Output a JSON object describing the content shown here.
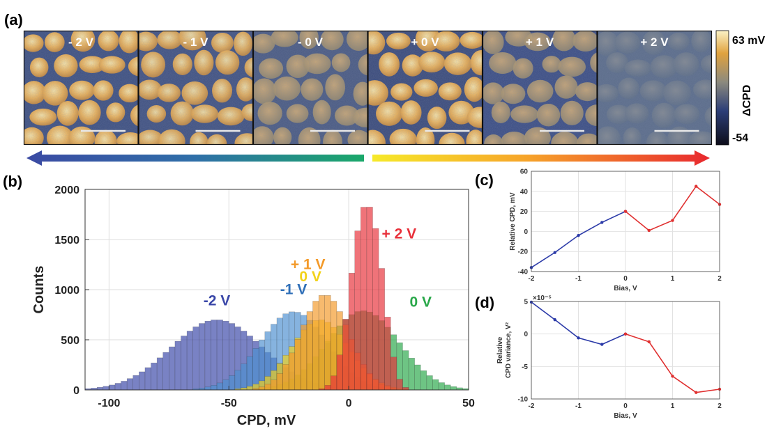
{
  "panel_labels": {
    "a": "(a)",
    "b": "(b)",
    "c": "(c)",
    "d": "(d)"
  },
  "images": {
    "labels": [
      "- 2 V",
      "- 1 V",
      "- 0 V",
      "+ 0 V",
      "+ 1 V",
      "+ 2 V"
    ],
    "colorbar": {
      "max_label": "63 mV",
      "min_label": "-54",
      "title": "ΔCPD"
    }
  },
  "chart_data": [
    {
      "id": "b",
      "type": "bar",
      "xlabel": "CPD, mV",
      "ylabel": "Counts",
      "xlim": [
        -110,
        50
      ],
      "ylim": [
        0,
        2000
      ],
      "xticks": [
        -100,
        -50,
        0,
        50
      ],
      "yticks": [
        0,
        500,
        1000,
        1500,
        2000
      ],
      "grid": true,
      "bin_width": 2.5,
      "series": [
        {
          "name": "-2 V",
          "color": "#3a47a8",
          "peaks": [
            {
              "center": -55,
              "height": 700,
              "width": 19
            }
          ]
        },
        {
          "name": "-1 V",
          "color": "#4d8fd0",
          "peaks": [
            {
              "center": -23,
              "height": 780,
              "width": 14
            }
          ]
        },
        {
          "name": "0 V",
          "color": "#2aa84a",
          "peaks": [
            {
              "center": 6,
              "height": 790,
              "width": 15
            }
          ]
        },
        {
          "name": "0 V",
          "color": "#f2d21a",
          "peaks": [
            {
              "center": -12,
              "height": 700,
              "width": 12
            }
          ]
        },
        {
          "name": "+ 1 V",
          "color": "#f39a2a",
          "peaks": [
            {
              "center": -10,
              "height": 950,
              "width": 10
            }
          ]
        },
        {
          "name": "+ 2 V",
          "color": "#e8303a",
          "peaks": [
            {
              "center": 6,
              "height": 1680,
              "width": 5.5
            },
            {
              "center": 13,
              "height": 600,
              "width": 4
            }
          ]
        }
      ]
    },
    {
      "id": "c",
      "type": "line",
      "xlabel": "Bias, V",
      "ylabel": "Relative CPD, mV",
      "xlim": [
        -2,
        2
      ],
      "ylim": [
        -40,
        60
      ],
      "xticks": [
        -2,
        -1,
        0,
        1,
        2
      ],
      "yticks": [
        -40,
        -20,
        0,
        20,
        40,
        60
      ],
      "grid": true,
      "series": [
        {
          "color": "#2b3aa8",
          "x": [
            -2,
            -1.5,
            -1,
            -0.5,
            0
          ],
          "y": [
            -36,
            -21,
            -4,
            9,
            20
          ]
        },
        {
          "color": "#e03030",
          "x": [
            0,
            0.5,
            1,
            1.5,
            2
          ],
          "y": [
            20,
            1,
            11,
            45,
            27
          ]
        }
      ]
    },
    {
      "id": "d",
      "type": "line",
      "xlabel": "Bias, V",
      "ylabel": "Relative\nCPD variance, V²",
      "scale_label": "×10⁻⁵",
      "xlim": [
        -2,
        2
      ],
      "ylim": [
        -10,
        5
      ],
      "xticks": [
        -2,
        -1,
        0,
        1,
        2
      ],
      "yticks": [
        -10,
        -5,
        0,
        5
      ],
      "grid": true,
      "series": [
        {
          "color": "#2b3aa8",
          "x": [
            -2,
            -1.5,
            -1,
            -0.5,
            0
          ],
          "y": [
            4.9,
            2.2,
            -0.6,
            -1.6,
            0
          ]
        },
        {
          "color": "#e03030",
          "x": [
            0,
            0.5,
            1,
            1.5,
            2
          ],
          "y": [
            0,
            -1.2,
            -6.5,
            -9,
            -8.5
          ]
        }
      ]
    }
  ]
}
